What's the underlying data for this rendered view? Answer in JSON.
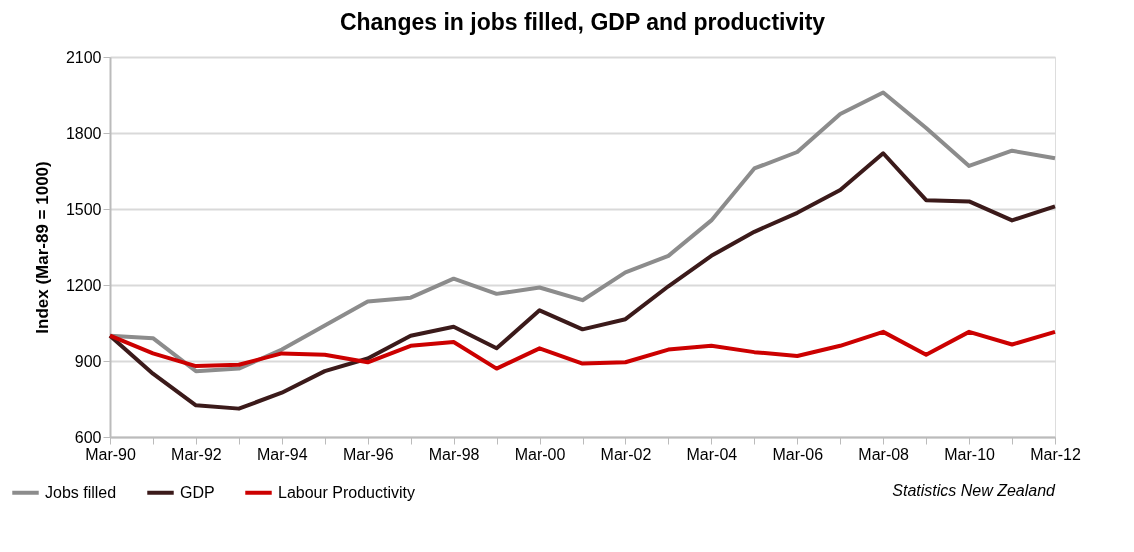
{
  "chart_data": {
    "type": "line",
    "title": "Changes in jobs filled, GDP and productivity",
    "ylabel": "Index (Mar-89 = 1000)",
    "categories": [
      "Mar-90",
      null,
      "Mar-92",
      null,
      "Mar-94",
      null,
      "Mar-96",
      null,
      "Mar-98",
      null,
      "Mar-00",
      null,
      "Mar-02",
      null,
      "Mar-04",
      null,
      "Mar-06",
      null,
      "Mar-08",
      null,
      "Mar-10",
      null,
      "Mar-12"
    ],
    "series": [
      {
        "name": "Jobs filled",
        "color": "#8c8c8c",
        "values": [
          1000,
          990,
          860,
          870,
          945,
          1040,
          1135,
          1150,
          1225,
          1165,
          1190,
          1140,
          1250,
          1315,
          1455,
          1660,
          1725,
          1875,
          1960,
          1820,
          1670,
          1730,
          1700
        ]
      },
      {
        "name": "GDP",
        "color": "#3b1a1a",
        "values": [
          1000,
          850,
          725,
          712,
          775,
          860,
          910,
          1000,
          1035,
          950,
          1100,
          1025,
          1065,
          1195,
          1315,
          1410,
          1485,
          1575,
          1720,
          1535,
          1530,
          1455,
          1510
        ]
      },
      {
        "name": "Labour  Productivity",
        "color": "#cc0000",
        "values": [
          1000,
          930,
          880,
          885,
          930,
          925,
          895,
          960,
          975,
          870,
          950,
          890,
          895,
          945,
          960,
          935,
          920,
          960,
          1015,
          925,
          1015,
          965,
          1015
        ]
      }
    ],
    "ylim": [
      600,
      2100
    ],
    "yticks": [
      600,
      900,
      1200,
      1500,
      1800,
      2100
    ],
    "grid": "y",
    "legend": "bottom left",
    "annotations": [
      "Statistics New Zealand"
    ]
  }
}
